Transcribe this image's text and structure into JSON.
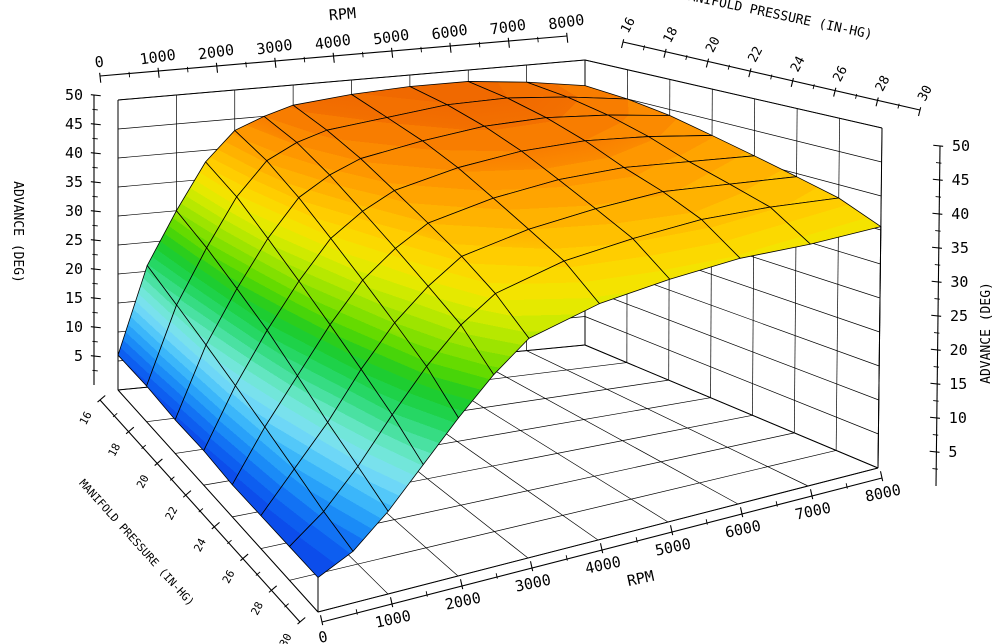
{
  "figure": {
    "background": "#ffffff",
    "description": "3D surface mesh plot of ignition advance versus engine RPM and manifold pressure"
  },
  "chart_data": {
    "type": "3d-surface",
    "title": "",
    "axes": {
      "rpm": {
        "label": "RPM",
        "min": 0,
        "max": 8000,
        "major_ticks": [
          0,
          1000,
          2000,
          3000,
          4000,
          5000,
          6000,
          7000,
          8000
        ],
        "minor_ticks": [
          500,
          1500,
          2500,
          3500,
          4500,
          5500,
          6500,
          7500
        ],
        "shown_on": [
          "top-back",
          "bottom-front"
        ]
      },
      "manifold_pressure": {
        "label": "MANIFOLD PRESSURE (IN-HG)",
        "min": 16,
        "max": 30,
        "major_ticks": [
          16,
          18,
          20,
          22,
          24,
          26,
          28,
          30
        ],
        "minor_ticks": [
          17,
          19,
          21,
          23,
          25,
          27,
          29
        ],
        "shown_on": [
          "top-right",
          "bottom-left"
        ]
      },
      "advance": {
        "label": "ADVANCE (DEG)",
        "min": 0,
        "max": 50,
        "major_ticks": [
          5,
          10,
          15,
          20,
          25,
          30,
          35,
          40,
          45,
          50
        ],
        "minor_ticks": [
          2.5,
          7.5,
          12.5,
          17.5,
          22.5,
          27.5,
          32.5,
          37.5,
          42.5,
          47.5
        ],
        "shown_on": [
          "left",
          "right"
        ]
      }
    },
    "grid": {
      "rpm_points": [
        0,
        500,
        1000,
        1500,
        2000,
        2500,
        3000,
        4000,
        5000,
        6000,
        7000,
        8000
      ],
      "map_points": [
        16,
        18,
        20,
        22,
        24,
        26,
        28,
        30
      ],
      "advance_table": [
        [
          6,
          21,
          30,
          38,
          43,
          45,
          46.5,
          47.5,
          48,
          48,
          47,
          45.5
        ],
        [
          6,
          19,
          28,
          36,
          41.5,
          44,
          45.5,
          46.5,
          47.5,
          47.5,
          46.5,
          45
        ],
        [
          5.5,
          17,
          25.5,
          33,
          39,
          42,
          44,
          45.5,
          46.5,
          46.5,
          45.5,
          44
        ],
        [
          5.5,
          15,
          23,
          30,
          36,
          39.5,
          42,
          44,
          45,
          45,
          44,
          42.5
        ],
        [
          5,
          13,
          20,
          27,
          33,
          37,
          40,
          42,
          43,
          43,
          42,
          41
        ],
        [
          5,
          11,
          17,
          24,
          30,
          34.5,
          38,
          40,
          41,
          41.5,
          40.5,
          39.5
        ],
        [
          5,
          9,
          14.5,
          21,
          27,
          32,
          35.5,
          38,
          39,
          39.5,
          39,
          38
        ],
        [
          5,
          7.5,
          12,
          17.5,
          23,
          28,
          32,
          34.5,
          35.5,
          36,
          35.5,
          35.5
        ]
      ]
    },
    "colormap": {
      "band_size_deg": 1.25,
      "stops": [
        [
          5,
          "#0B45E8"
        ],
        [
          7.5,
          "#0E66F2"
        ],
        [
          10,
          "#1E97F8"
        ],
        [
          12.5,
          "#45C0FA"
        ],
        [
          15,
          "#7CDFF6"
        ],
        [
          17.5,
          "#6FE8D0"
        ],
        [
          20,
          "#3EDF92"
        ],
        [
          22.5,
          "#1ED455"
        ],
        [
          25,
          "#1DCB25"
        ],
        [
          27.5,
          "#56D800"
        ],
        [
          30,
          "#90E200"
        ],
        [
          32.5,
          "#C4EA00"
        ],
        [
          35,
          "#F0E800"
        ],
        [
          37.5,
          "#FFD400"
        ],
        [
          40,
          "#FFB900"
        ],
        [
          42.5,
          "#FF9D00"
        ],
        [
          45,
          "#FA8300"
        ],
        [
          47.5,
          "#F06900"
        ]
      ]
    },
    "style": {
      "mesh_line_color": "#000000",
      "grid_line_color": "#000000",
      "floor_grid": true,
      "wall_grids": true,
      "legend": "none"
    }
  }
}
